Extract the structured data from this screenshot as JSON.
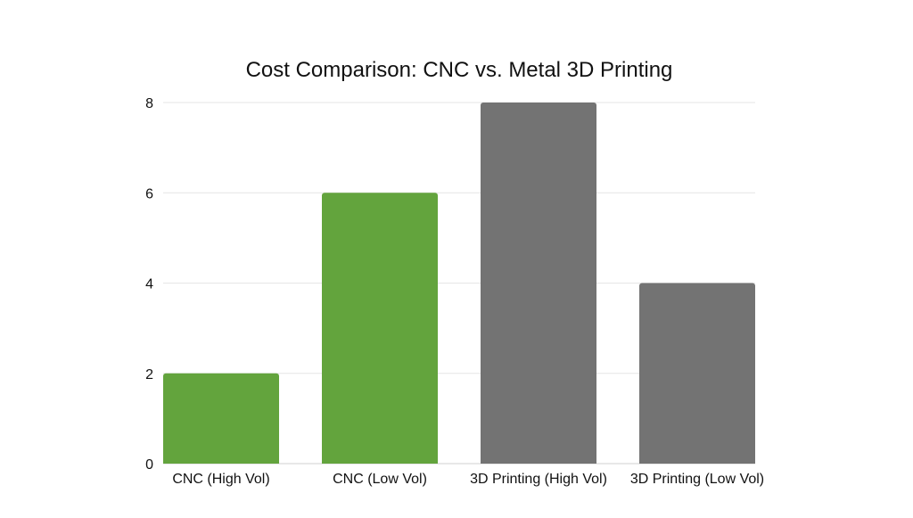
{
  "chart_data": {
    "type": "bar",
    "title": "Cost Comparison: CNC vs. Metal 3D Printing",
    "xlabel": "",
    "ylabel": "",
    "categories": [
      "CNC (High Vol)",
      "CNC (Low Vol)",
      "3D Printing (High Vol)",
      "3D Printing (Low Vol)"
    ],
    "values": [
      2,
      6,
      8,
      4
    ],
    "bar_colors": [
      "#63a43d",
      "#63a43d",
      "#737373",
      "#737373"
    ],
    "ylim": [
      0,
      8
    ],
    "yticks": [
      0,
      2,
      4,
      6,
      8
    ],
    "grid": true,
    "legend": "none"
  }
}
